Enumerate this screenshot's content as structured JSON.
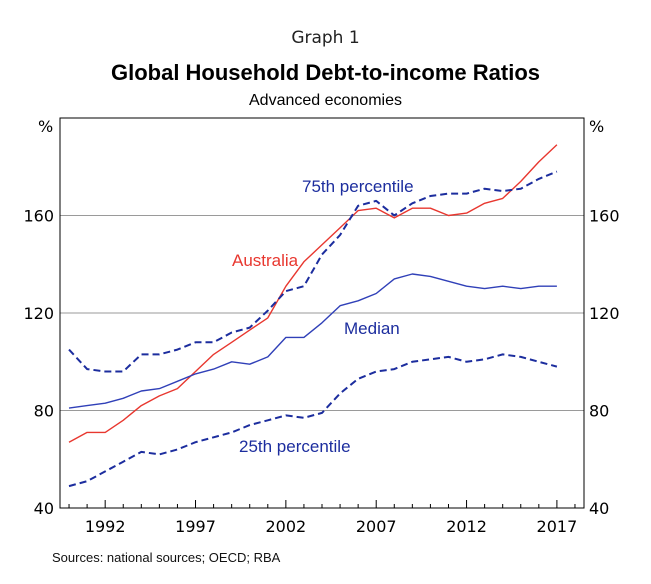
{
  "header": {
    "graph_label": "Graph 1",
    "title": "Global Household Debt-to-income Ratios",
    "subtitle": "Advanced economies"
  },
  "footer": {
    "source": "Sources:  national sources; OECD; RBA"
  },
  "chart_data": {
    "type": "line",
    "title": "Global Household Debt-to-income Ratios",
    "subtitle": "Advanced economies",
    "xlim": [
      1989.5,
      2018.5
    ],
    "ylim": [
      40,
      200
    ],
    "x_ticks": [
      1992,
      1997,
      2002,
      2007,
      2012,
      2017
    ],
    "y_ticks": [
      40,
      80,
      120,
      160
    ],
    "y_unit_left": "%",
    "y_unit_right": "%",
    "grid": "horizontal",
    "legend": "inline labels",
    "x": [
      1990,
      1991,
      1992,
      1993,
      1994,
      1995,
      1996,
      1997,
      1998,
      1999,
      2000,
      2001,
      2002,
      2003,
      2004,
      2005,
      2006,
      2007,
      2008,
      2009,
      2010,
      2011,
      2012,
      2013,
      2014,
      2015,
      2016,
      2017
    ],
    "series": [
      {
        "name": "Australia",
        "color": "#e8372f",
        "style": "solid",
        "values": [
          67,
          71,
          71,
          76,
          82,
          86,
          89,
          96,
          103,
          108,
          113,
          118,
          131,
          141,
          148,
          155,
          162,
          163,
          159,
          163,
          163,
          160,
          161,
          165,
          167,
          174,
          182,
          189
        ]
      },
      {
        "name": "75th percentile",
        "color": "#1c2d9e",
        "style": "dashed",
        "values": [
          105,
          97,
          96,
          96,
          103,
          103,
          105,
          108,
          108,
          112,
          114,
          121,
          129,
          131,
          144,
          152,
          164,
          166,
          160,
          165,
          168,
          169,
          169,
          171,
          170,
          171,
          175,
          178
        ]
      },
      {
        "name": "Median",
        "color": "#3040b8",
        "style": "solid",
        "values": [
          81,
          82,
          83,
          85,
          88,
          89,
          92,
          95,
          97,
          100,
          99,
          102,
          110,
          110,
          116,
          123,
          125,
          128,
          134,
          136,
          135,
          133,
          131,
          130,
          131,
          130,
          131,
          131
        ]
      },
      {
        "name": "25th percentile",
        "color": "#1c2d9e",
        "style": "dashed",
        "values": [
          49,
          51,
          55,
          59,
          63,
          62,
          64,
          67,
          69,
          71,
          74,
          76,
          78,
          77,
          79,
          87,
          93,
          96,
          97,
          100,
          101,
          102,
          100,
          101,
          103,
          102,
          100,
          98
        ]
      }
    ],
    "annotations": [
      {
        "text": "75th percentile",
        "color": "#1c2d9e"
      },
      {
        "text": "Australia",
        "color": "#e8372f"
      },
      {
        "text": "Median",
        "color": "#1c2d9e"
      },
      {
        "text": "25th percentile",
        "color": "#1c2d9e"
      }
    ]
  }
}
